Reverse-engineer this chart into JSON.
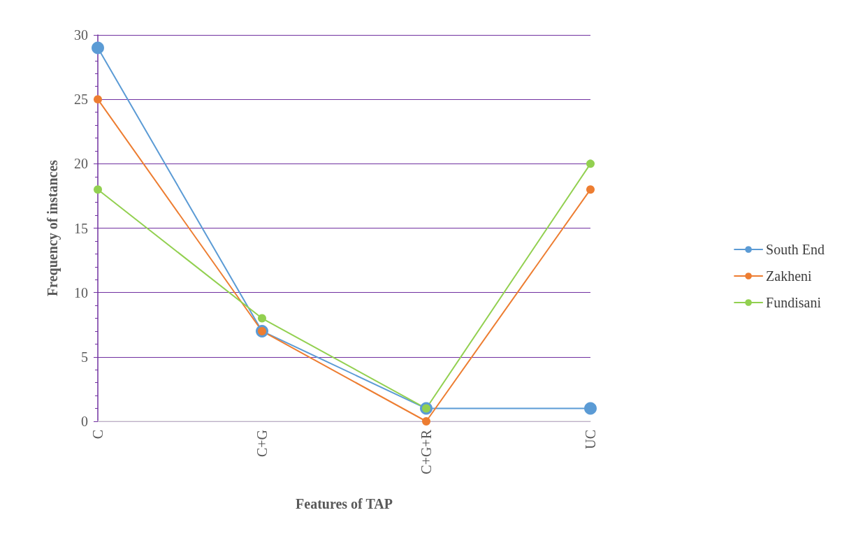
{
  "chart_data": {
    "type": "line",
    "xlabel": "Features of TAP",
    "ylabel": "Frequency of instances",
    "categories": [
      "C",
      "C+G",
      "C+G+R",
      "UC"
    ],
    "series": [
      {
        "name": "South End",
        "color": "#5b9bd5",
        "values": [
          29,
          7,
          1,
          1
        ]
      },
      {
        "name": "Zakheni",
        "color": "#ed7d31",
        "values": [
          25,
          7,
          0,
          18
        ]
      },
      {
        "name": "Fundisani",
        "color": "#92d050",
        "values": [
          18,
          8,
          1,
          20
        ]
      }
    ],
    "ylim": [
      0,
      30
    ],
    "yticks": [
      0,
      5,
      10,
      15,
      20,
      25,
      30
    ],
    "grid": "y",
    "legend": "right",
    "marker": "circle",
    "line_style": "solid"
  }
}
